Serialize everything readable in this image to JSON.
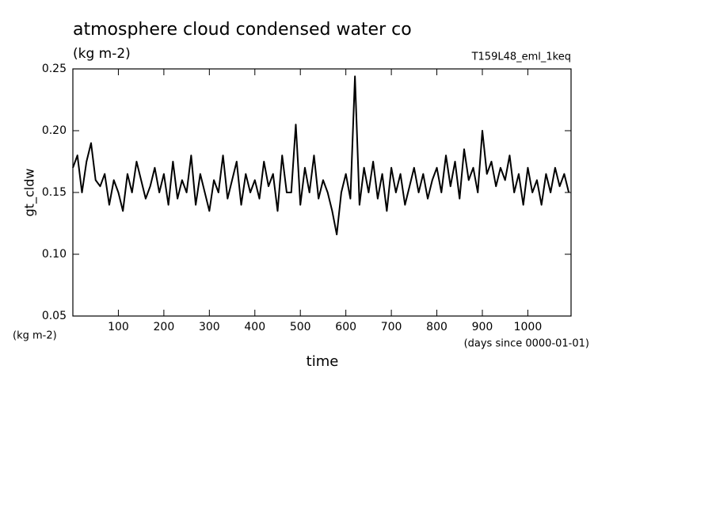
{
  "chart_data": {
    "type": "line",
    "title": "atmosphere cloud condensed water co",
    "subtitle": "(kg m-2)",
    "run_label": "T159L48_eml_1keq",
    "y_label": "gt_cldw",
    "y_unit": "(kg m-2)",
    "x_label": "time",
    "x_unit": "(days since 0000-01-01)",
    "x": [
      0,
      10,
      20,
      30,
      40,
      50,
      60,
      70,
      80,
      90,
      100,
      110,
      120,
      130,
      140,
      150,
      160,
      170,
      180,
      190,
      200,
      210,
      220,
      230,
      240,
      250,
      260,
      270,
      280,
      290,
      300,
      310,
      320,
      330,
      340,
      350,
      360,
      370,
      380,
      390,
      400,
      410,
      420,
      430,
      440,
      450,
      460,
      470,
      480,
      490,
      500,
      510,
      520,
      530,
      540,
      550,
      560,
      570,
      580,
      590,
      600,
      610,
      620,
      630,
      640,
      650,
      660,
      670,
      680,
      690,
      700,
      710,
      720,
      730,
      740,
      750,
      760,
      770,
      780,
      790,
      800,
      810,
      820,
      830,
      840,
      850,
      860,
      870,
      880,
      890,
      900,
      910,
      920,
      930,
      940,
      950,
      960,
      970,
      980,
      990,
      1000,
      1010,
      1020,
      1030,
      1040,
      1050,
      1060,
      1070,
      1080,
      1090
    ],
    "series": [
      {
        "name": "gt_cldw",
        "color": "#000000",
        "values": [
          0.17,
          0.18,
          0.15,
          0.175,
          0.19,
          0.16,
          0.155,
          0.165,
          0.14,
          0.16,
          0.15,
          0.135,
          0.165,
          0.15,
          0.175,
          0.16,
          0.145,
          0.155,
          0.17,
          0.15,
          0.165,
          0.14,
          0.175,
          0.145,
          0.16,
          0.15,
          0.18,
          0.14,
          0.165,
          0.15,
          0.135,
          0.16,
          0.15,
          0.18,
          0.145,
          0.16,
          0.175,
          0.14,
          0.165,
          0.15,
          0.16,
          0.145,
          0.175,
          0.155,
          0.165,
          0.135,
          0.18,
          0.15,
          0.15,
          0.205,
          0.14,
          0.17,
          0.15,
          0.18,
          0.145,
          0.16,
          0.15,
          0.135,
          0.116,
          0.15,
          0.165,
          0.145,
          0.244,
          0.14,
          0.17,
          0.15,
          0.175,
          0.145,
          0.165,
          0.135,
          0.17,
          0.15,
          0.165,
          0.14,
          0.155,
          0.17,
          0.15,
          0.165,
          0.145,
          0.16,
          0.17,
          0.15,
          0.18,
          0.155,
          0.175,
          0.145,
          0.185,
          0.16,
          0.17,
          0.15,
          0.2,
          0.165,
          0.175,
          0.155,
          0.17,
          0.16,
          0.18,
          0.15,
          0.165,
          0.14,
          0.17,
          0.15,
          0.16,
          0.14,
          0.165,
          0.15,
          0.17,
          0.155,
          0.165,
          0.15
        ]
      }
    ],
    "xlim": [
      0,
      1095
    ],
    "ylim": [
      0.05,
      0.25
    ],
    "xticks": [
      100,
      200,
      300,
      400,
      500,
      600,
      700,
      800,
      900,
      1000
    ],
    "yticks": [
      0.05,
      {
        "value": 0.1,
        "label": "0.10"
      },
      0.15,
      {
        "value": 0.2,
        "label": "0.20"
      },
      0.25
    ]
  }
}
